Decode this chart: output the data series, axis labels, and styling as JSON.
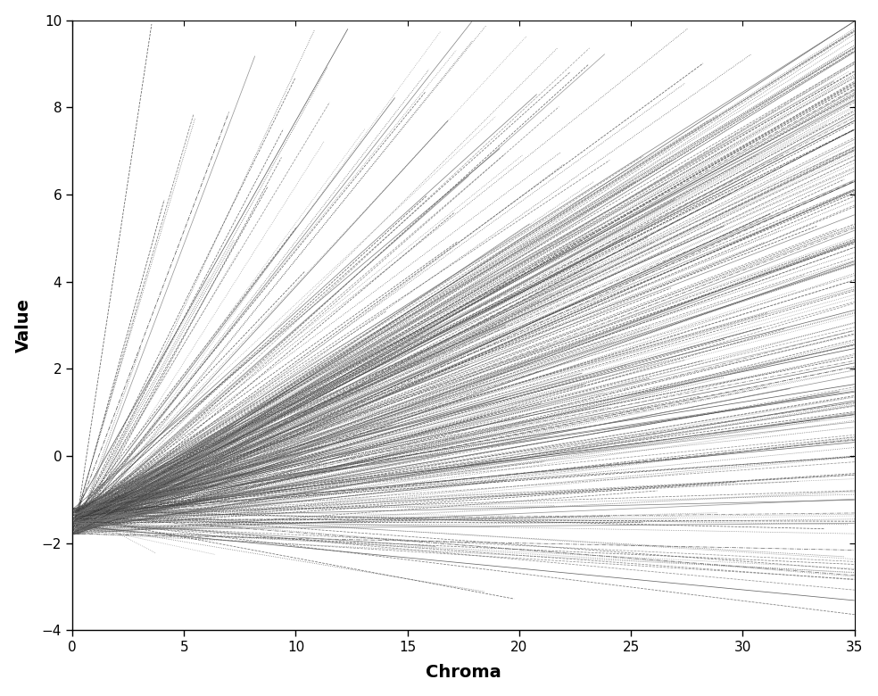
{
  "xlabel": "Chroma",
  "ylabel": "Value",
  "xlim": [
    0,
    35
  ],
  "ylim": [
    -4,
    10
  ],
  "xticks": [
    0,
    5,
    10,
    15,
    20,
    25,
    30,
    35
  ],
  "yticks": [
    -4,
    -2,
    0,
    2,
    4,
    6,
    8,
    10
  ],
  "convergence_x": 0.0,
  "convergence_y": -1.5,
  "num_lines": 400,
  "max_chroma": 35,
  "value_min_endpoint": -3.8,
  "value_max_endpoint": 10.0,
  "background_color": "#ffffff",
  "line_alpha": 0.75,
  "line_width": 0.55
}
